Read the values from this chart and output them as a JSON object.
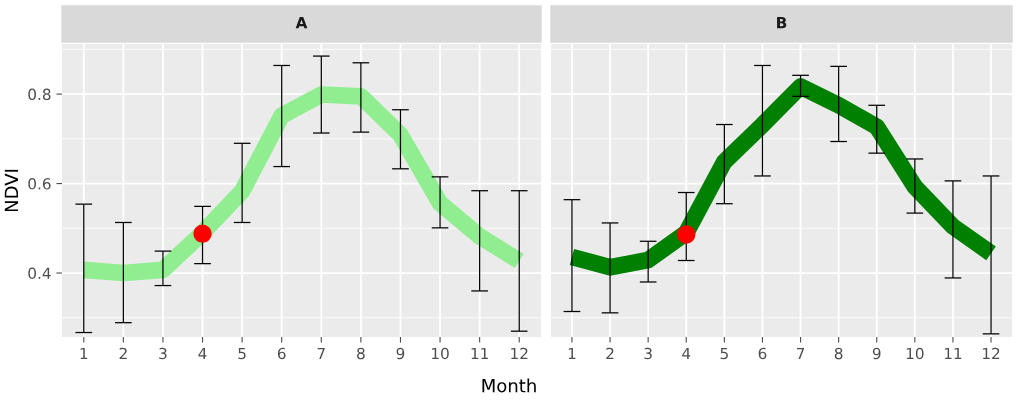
{
  "chart_data": [
    {
      "type": "line",
      "title": "A",
      "xlabel": "Month",
      "ylabel": "NDVI",
      "x": [
        1,
        2,
        3,
        4,
        5,
        6,
        7,
        8,
        9,
        10,
        11,
        12
      ],
      "xlim": [
        0.45,
        12.55
      ],
      "xticks": [
        1,
        2,
        3,
        4,
        5,
        6,
        7,
        8,
        9,
        10,
        11,
        12
      ],
      "ylim": [
        0.257,
        0.912
      ],
      "yticks": [
        0.4,
        0.6,
        0.8
      ],
      "grid": true,
      "legend": false,
      "series": [
        {
          "color": "#90ee90",
          "values": [
            0.407,
            0.4,
            0.407,
            0.49,
            0.583,
            0.752,
            0.799,
            0.795,
            0.709,
            0.556,
            0.482,
            0.427
          ],
          "errors": [
            [
              0.267,
              0.554
            ],
            [
              0.289,
              0.513
            ],
            [
              0.372,
              0.449
            ],
            [
              0.421,
              0.549
            ],
            [
              0.513,
              0.69
            ],
            [
              0.638,
              0.864
            ],
            [
              0.713,
              0.885
            ],
            [
              0.715,
              0.87
            ],
            [
              0.633,
              0.765
            ],
            [
              0.501,
              0.615
            ],
            [
              0.36,
              0.584
            ],
            [
              0.27,
              0.584
            ]
          ]
        },
        {
          "type": "scatter",
          "color": "#ff0000",
          "x": [
            4
          ],
          "values": [
            0.488
          ],
          "marker": "circle"
        }
      ]
    },
    {
      "type": "line",
      "title": "B",
      "x": [
        1,
        2,
        3,
        4,
        5,
        6,
        7,
        8,
        9,
        10,
        11,
        12
      ],
      "xlim": [
        0.45,
        12.55
      ],
      "xticks": [
        1,
        2,
        3,
        4,
        5,
        6,
        7,
        8,
        9,
        10,
        11,
        12
      ],
      "ylim": [
        0.257,
        0.912
      ],
      "yticks": [
        0.4,
        0.6,
        0.8
      ],
      "grid": true,
      "legend": false,
      "tick_labels": "x",
      "series": [
        {
          "color": "#008000",
          "values": [
            0.436,
            0.413,
            0.429,
            0.49,
            0.649,
            0.731,
            0.817,
            0.775,
            0.727,
            0.593,
            0.504,
            0.444
          ],
          "errors": [
            [
              0.314,
              0.564
            ],
            [
              0.311,
              0.512
            ],
            [
              0.38,
              0.471
            ],
            [
              0.428,
              0.58
            ],
            [
              0.555,
              0.732
            ],
            [
              0.617,
              0.864
            ],
            [
              0.795,
              0.842
            ],
            [
              0.694,
              0.862
            ],
            [
              0.668,
              0.775
            ],
            [
              0.534,
              0.655
            ],
            [
              0.389,
              0.606
            ],
            [
              0.264,
              0.617
            ]
          ]
        },
        {
          "type": "scatter",
          "color": "#ff0000",
          "x": [
            4
          ],
          "values": [
            0.486
          ],
          "marker": "circle"
        }
      ]
    }
  ]
}
